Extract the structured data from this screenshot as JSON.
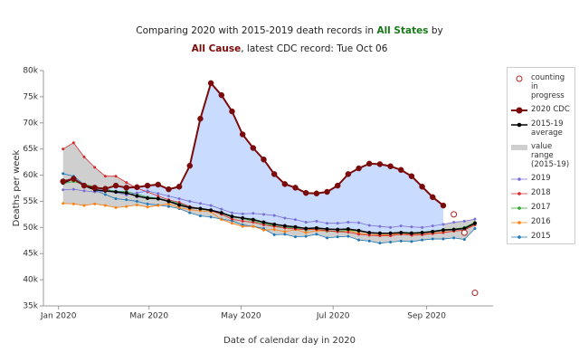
{
  "chart_data": {
    "type": "line",
    "title": {
      "line1": "Comparing 2020 with 2015-2019 death records in",
      "region": "All States",
      "by": "by",
      "cause": "All Cause",
      "line2": ", latest CDC record: Tue Oct 06",
      "region_color": "#1a7a1a",
      "cause_color": "#7b0a0a"
    },
    "x_label": "Date of calendar day in 2020",
    "y_label": "Deaths per week",
    "x": [
      "2020-01-04",
      "2020-01-11",
      "2020-01-18",
      "2020-01-25",
      "2020-02-01",
      "2020-02-08",
      "2020-02-15",
      "2020-02-22",
      "2020-02-29",
      "2020-03-07",
      "2020-03-14",
      "2020-03-21",
      "2020-03-28",
      "2020-04-04",
      "2020-04-11",
      "2020-04-18",
      "2020-04-25",
      "2020-05-02",
      "2020-05-09",
      "2020-05-16",
      "2020-05-23",
      "2020-05-30",
      "2020-06-06",
      "2020-06-13",
      "2020-06-20",
      "2020-06-27",
      "2020-07-04",
      "2020-07-11",
      "2020-07-18",
      "2020-07-25",
      "2020-08-01",
      "2020-08-08",
      "2020-08-15",
      "2020-08-22",
      "2020-08-29",
      "2020-09-05",
      "2020-09-12",
      "2020-09-19",
      "2020-09-26",
      "2020-10-03"
    ],
    "xlim": [
      "2019-12-22",
      "2020-10-15"
    ],
    "xticks": [
      {
        "value": "2020-01-01",
        "label": "Jan 2020"
      },
      {
        "value": "2020-03-01",
        "label": "Mar 2020"
      },
      {
        "value": "2020-05-01",
        "label": "May 2020"
      },
      {
        "value": "2020-07-01",
        "label": "Jul 2020"
      },
      {
        "value": "2020-09-01",
        "label": "Sep 2020"
      }
    ],
    "ylim": [
      35000,
      80000
    ],
    "yticks": [
      {
        "value": 35000,
        "label": "35k"
      },
      {
        "value": 40000,
        "label": "40k"
      },
      {
        "value": 45000,
        "label": "45k"
      },
      {
        "value": 50000,
        "label": "50k"
      },
      {
        "value": 55000,
        "label": "55k"
      },
      {
        "value": 60000,
        "label": "60k"
      },
      {
        "value": 65000,
        "label": "65k"
      },
      {
        "value": 70000,
        "label": "70k"
      },
      {
        "value": 75000,
        "label": "75k"
      },
      {
        "value": 80000,
        "label": "80k"
      }
    ],
    "excess_fill": "#c9dcff",
    "range": {
      "name": "value range (2015-19)",
      "color": "#cfcfcf"
    },
    "series": [
      {
        "name": "counting in progress",
        "color": "#b22222",
        "values": [
          null,
          null,
          null,
          null,
          null,
          null,
          null,
          null,
          null,
          null,
          null,
          null,
          null,
          null,
          null,
          null,
          null,
          null,
          null,
          null,
          null,
          null,
          null,
          null,
          null,
          null,
          null,
          null,
          null,
          null,
          null,
          null,
          null,
          null,
          null,
          null,
          null,
          52500,
          49000,
          37500
        ]
      },
      {
        "name": "2020 CDC",
        "color": "#7b0a0a",
        "values": [
          58800,
          59300,
          58000,
          57600,
          57400,
          58000,
          57600,
          57700,
          58000,
          58200,
          57300,
          57800,
          61800,
          70800,
          77600,
          75300,
          72200,
          67800,
          65200,
          63000,
          60200,
          58300,
          57600,
          56600,
          56500,
          56800,
          58000,
          60200,
          61300,
          62200,
          62100,
          61700,
          61000,
          59800,
          57800,
          55800,
          54200,
          null,
          null,
          null
        ]
      },
      {
        "name": "2015-19 average",
        "color": "#000000",
        "values": [
          58500,
          59300,
          58000,
          57200,
          57000,
          56800,
          56600,
          56000,
          55600,
          55500,
          55000,
          54300,
          53800,
          53600,
          53300,
          52800,
          52100,
          51800,
          51500,
          51000,
          50600,
          50300,
          50100,
          49800,
          49900,
          49700,
          49600,
          49700,
          49400,
          49000,
          48900,
          48900,
          49000,
          48900,
          49000,
          49200,
          49500,
          49600,
          49800,
          50800
        ]
      },
      {
        "name": "2019",
        "color": "#7a6fd6",
        "values": [
          57200,
          57300,
          57000,
          56800,
          56900,
          56700,
          56200,
          56600,
          57000,
          56500,
          56000,
          55500,
          55000,
          54600,
          54200,
          53500,
          52800,
          52600,
          52700,
          52500,
          52300,
          51800,
          51500,
          51000,
          51200,
          50800,
          50800,
          51000,
          50900,
          50400,
          50200,
          50000,
          50300,
          50100,
          50000,
          50300,
          50600,
          51000,
          51200,
          51600
        ]
      },
      {
        "name": "2018",
        "color": "#d62728",
        "values": [
          65000,
          66200,
          63500,
          61500,
          59800,
          59800,
          58600,
          57500,
          56800,
          56000,
          55300,
          54800,
          54000,
          53600,
          53200,
          52500,
          51600,
          51200,
          51000,
          50500,
          50200,
          49900,
          49700,
          49600,
          49600,
          49400,
          49200,
          49100,
          48700,
          48500,
          48400,
          48400,
          48700,
          48500,
          48600,
          48800,
          49000,
          49300,
          49500,
          50500
        ]
      },
      {
        "name": "2017",
        "color": "#2ca02c",
        "values": [
          58400,
          58800,
          58200,
          57800,
          57300,
          56900,
          56900,
          56400,
          55800,
          55600,
          55100,
          54600,
          54000,
          53500,
          53200,
          52700,
          52000,
          51700,
          51200,
          50800,
          50300,
          50000,
          49900,
          49500,
          49700,
          49300,
          49200,
          49500,
          49300,
          49000,
          48900,
          48900,
          49100,
          49000,
          49100,
          49300,
          49600,
          49700,
          50000,
          51000
        ]
      },
      {
        "name": "2016",
        "color": "#ff7f0e",
        "values": [
          54600,
          54500,
          54200,
          54500,
          54200,
          53800,
          54000,
          54300,
          53900,
          54200,
          54500,
          53800,
          53400,
          53200,
          53000,
          51500,
          50800,
          50200,
          50200,
          49500,
          49600,
          49200,
          49600,
          49000,
          49400,
          49300,
          49200,
          49400,
          48900,
          48700,
          48600,
          48600,
          48900,
          48700,
          48700,
          48900,
          49100,
          49300,
          49500,
          50600
        ]
      },
      {
        "name": "2015",
        "color": "#1f77b4",
        "values": [
          60300,
          59800,
          58200,
          57100,
          56300,
          55500,
          55300,
          55000,
          54500,
          54300,
          54000,
          53600,
          52800,
          52200,
          52000,
          51600,
          51300,
          50500,
          50200,
          49800,
          48600,
          48700,
          48200,
          48300,
          48700,
          48000,
          48200,
          48300,
          47600,
          47400,
          47000,
          47200,
          47400,
          47300,
          47600,
          47800,
          47800,
          48000,
          47700,
          49800
        ]
      }
    ]
  }
}
